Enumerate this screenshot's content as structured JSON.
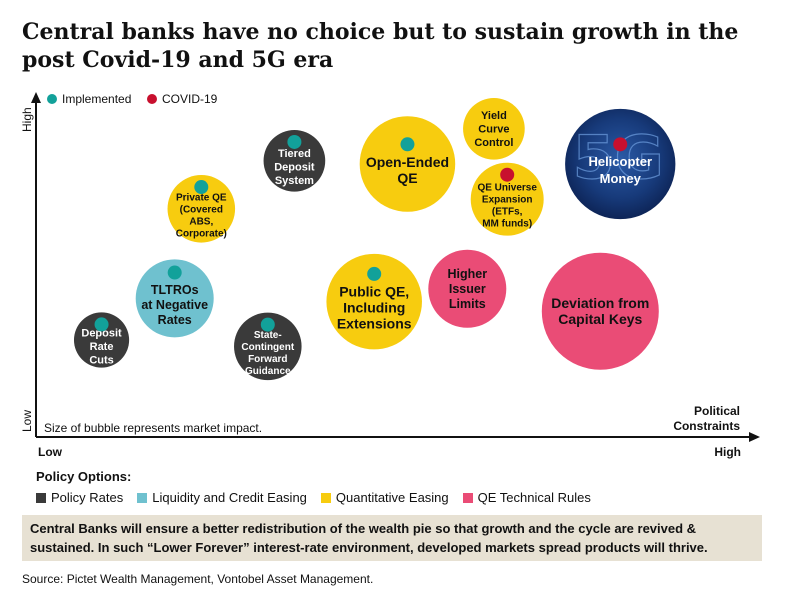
{
  "title": "Central banks have no choice but to sustain growth in the post Covid-19 and 5G era",
  "legend_top": [
    {
      "label": "Implemented",
      "color": "#12a19a"
    },
    {
      "label": "COVID-19",
      "color": "#c8102e"
    }
  ],
  "policy_options_title": "Policy Options:",
  "policy_options": [
    {
      "label": "Policy Rates",
      "color": "#3a3a3a"
    },
    {
      "label": "Liquidity and Credit Easing",
      "color": "#6fc1cf"
    },
    {
      "label": "Quantitative Easing",
      "color": "#f7cc0f"
    },
    {
      "label": "QE Technical Rules",
      "color": "#ea4c76"
    }
  ],
  "footer_text": "Central Banks will ensure a better redistribution of the wealth pie so that growth and the cycle are revived & sustained. In such “Lower Forever” interest-rate environment, developed markets spread products will thrive.",
  "source": "Source: Pictet Wealth Management, Vontobel Asset Management.",
  "chart_data": {
    "type": "scatter",
    "bubble": true,
    "xlabel": "Political Constraints",
    "xlabel_lines": [
      "Political",
      "Constraints"
    ],
    "ylabel_low": "Low",
    "ylabel_high": "High",
    "xtick_low": "Low",
    "xtick_high": "High",
    "note": "Size of bubble represents market impact.",
    "xlim": [
      0,
      100
    ],
    "ylim": [
      0,
      100
    ],
    "points": [
      {
        "lines": [
          "Deposit",
          "Rate",
          "Cuts"
        ],
        "category": "Policy Rates",
        "x": 7,
        "y": 25,
        "size": 2,
        "marker": "Implemented"
      },
      {
        "lines": [
          "TLTROs",
          "at Negative",
          "Rates"
        ],
        "category": "Liquidity and Credit Easing",
        "x": 18,
        "y": 38,
        "size": 4,
        "marker": "Implemented"
      },
      {
        "lines": [
          "Private QE",
          "(Covered",
          "ABS,",
          "Corporate)"
        ],
        "category": "Quantitative Easing",
        "x": 22,
        "y": 66,
        "size": 3,
        "marker": "Implemented"
      },
      {
        "lines": [
          "State-",
          "Contingent",
          "Forward",
          "Guidance"
        ],
        "category": "Policy Rates",
        "x": 32,
        "y": 23,
        "size": 3,
        "marker": "Implemented"
      },
      {
        "lines": [
          "Tiered",
          "Deposit",
          "System"
        ],
        "category": "Policy Rates",
        "x": 36,
        "y": 81,
        "size": 2.5,
        "marker": "Implemented"
      },
      {
        "lines": [
          "Public QE,",
          "Including",
          "Extensions"
        ],
        "category": "Quantitative Easing",
        "x": 48,
        "y": 37,
        "size": 6,
        "marker": "Implemented"
      },
      {
        "lines": [
          "Open-Ended",
          "QE"
        ],
        "category": "Quantitative Easing",
        "x": 53,
        "y": 80,
        "size": 6,
        "marker": "Implemented"
      },
      {
        "lines": [
          "Higher",
          "Issuer",
          "Limits"
        ],
        "category": "QE Technical Rules",
        "x": 62,
        "y": 41,
        "size": 4,
        "marker": ""
      },
      {
        "lines": [
          "Yield",
          "Curve",
          "Control"
        ],
        "category": "Quantitative Easing",
        "x": 66,
        "y": 91,
        "size": 2.5,
        "marker": ""
      },
      {
        "lines": [
          "QE Universe",
          "Expansion",
          "(ETFs,",
          "MM funds)"
        ],
        "category": "Quantitative Easing",
        "x": 68,
        "y": 69,
        "size": 3.5,
        "marker": "COVID-19"
      },
      {
        "lines": [
          "Deviation from",
          "Capital Keys"
        ],
        "category": "QE Technical Rules",
        "x": 82,
        "y": 34,
        "size": 9,
        "marker": ""
      },
      {
        "lines": [
          "Helicopter",
          "Money"
        ],
        "category": "Helicopter Money",
        "x": 85,
        "y": 80,
        "size": 8,
        "marker": "COVID-19"
      }
    ]
  }
}
